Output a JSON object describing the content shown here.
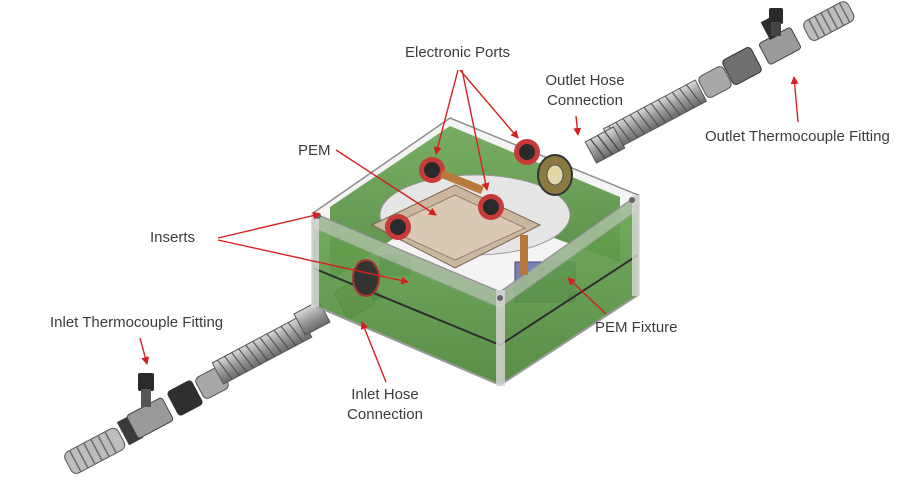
{
  "labels": {
    "electronic_ports": "Electronic Ports",
    "outlet_hose_connection_1": "Outlet Hose",
    "outlet_hose_connection_2": "Connection",
    "pem": "PEM",
    "outlet_thermocouple_fitting": "Outlet Thermocouple Fitting",
    "inserts": "Inserts",
    "inlet_thermocouple_fitting": "Inlet Thermocouple Fitting",
    "pem_fixture": "PEM Fixture",
    "inlet_hose_connection_1": "Inlet Hose",
    "inlet_hose_connection_2": "Connection"
  },
  "colors": {
    "annotation": "#d62020",
    "enclosure_green": "#5e9a48",
    "enclosure_edge": "#8f8f8f",
    "port_ring": "#c83a3a",
    "spring": "#a9a9a9",
    "fitting_dark": "#3a3a3a"
  }
}
